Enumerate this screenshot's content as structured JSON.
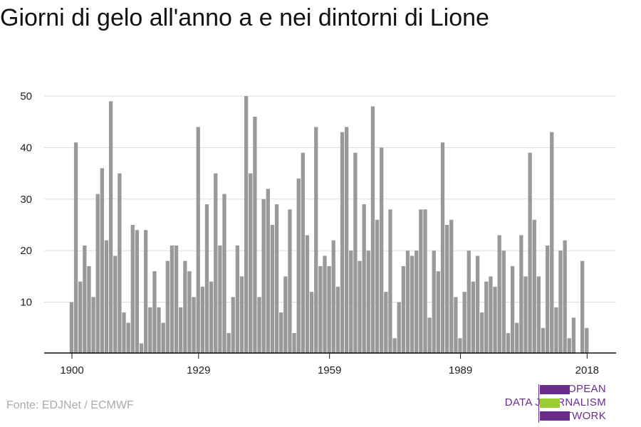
{
  "title": "Giorni di gelo all'anno a e nei dintorni di Lione",
  "source": "Fonte: EDJNet / ECMWF",
  "logo": {
    "lines": [
      "EUROPEAN",
      "DATA JOURNALISM",
      "NETWORK"
    ],
    "colors": {
      "purple": "#6b2d8c",
      "green": "#9acd32"
    }
  },
  "colors": {
    "bar": "#999999",
    "grid": "#dddddd",
    "axis": "#111111",
    "text": "#222222"
  },
  "chart_data": {
    "type": "bar",
    "title": "Giorni di gelo all'anno a e nei dintorni di Lione",
    "xlabel": "",
    "ylabel": "",
    "x_start": 1900,
    "x_ticks": [
      1900,
      1929,
      1959,
      1989,
      2018
    ],
    "y_ticks": [
      10,
      20,
      30,
      40,
      50
    ],
    "ylim": [
      0,
      50
    ],
    "grid": true,
    "values": [
      10,
      41,
      14,
      21,
      17,
      11,
      31,
      36,
      22,
      49,
      19,
      35,
      8,
      6,
      25,
      24,
      2,
      24,
      9,
      16,
      9,
      6,
      18,
      21,
      21,
      9,
      18,
      16,
      11,
      44,
      13,
      29,
      14,
      35,
      21,
      31,
      4,
      11,
      21,
      15,
      50,
      35,
      46,
      11,
      30,
      32,
      25,
      29,
      8,
      15,
      28,
      4,
      34,
      39,
      23,
      12,
      44,
      17,
      19,
      17,
      22,
      13,
      43,
      44,
      20,
      39,
      18,
      29,
      20,
      48,
      26,
      40,
      12,
      28,
      3,
      10,
      17,
      20,
      19,
      20,
      28,
      28,
      7,
      20,
      16,
      41,
      25,
      26,
      11,
      3,
      12,
      20,
      14,
      19,
      8,
      14,
      15,
      13,
      23,
      20,
      4,
      17,
      6,
      23,
      15,
      39,
      26,
      15,
      5,
      21,
      43,
      9,
      20,
      22,
      3,
      7,
      0,
      18,
      5
    ]
  }
}
